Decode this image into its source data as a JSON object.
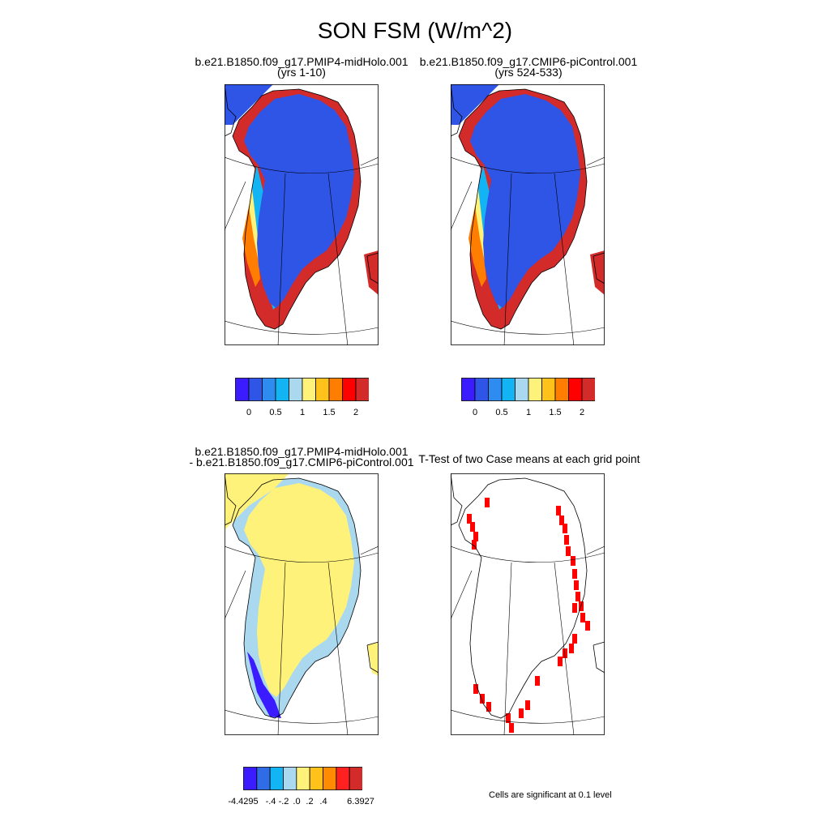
{
  "title": "SON FSM (W/m^2)",
  "panels": {
    "p1": {
      "line1": "b.e21.B1850.f09_g17.PMIP4-midHolo.001",
      "line2": "(yrs 1-10)"
    },
    "p2": {
      "line1": "b.e21.B1850.f09_g17.CMIP6-piControl.001",
      "line2": "(yrs 524-533)"
    },
    "p3": {
      "line1": "b.e21.B1850.f09_g17.PMIP4-midHolo.001",
      "line2": "- b.e21.B1850.f09_g17.CMIP6-piControl.001"
    },
    "p4": {
      "line1": "T-Test of two Case means at each grid point"
    }
  },
  "colorbar_top": {
    "colors": [
      "#3b1bff",
      "#2f55e6",
      "#2e8cf0",
      "#13b4f4",
      "#a9d8ef",
      "#fff27a",
      "#ffc21a",
      "#ff7d00",
      "#ff0000",
      "#d32a2a"
    ],
    "labels": [
      "0",
      "0.5",
      "1",
      "1.5",
      "2"
    ]
  },
  "colorbar_bottom": {
    "colors": [
      "#3b1bff",
      "#2f6ce6",
      "#13b4f4",
      "#a9d8ef",
      "#fff27a",
      "#ffc21a",
      "#ff8c00",
      "#ff2020",
      "#d32a2a"
    ],
    "labels": [
      "-4.4295",
      "-.4",
      "-.2",
      ".0",
      ".2",
      ".4",
      "6.3927"
    ]
  },
  "note": "Cells are significant at 0.1 level"
}
